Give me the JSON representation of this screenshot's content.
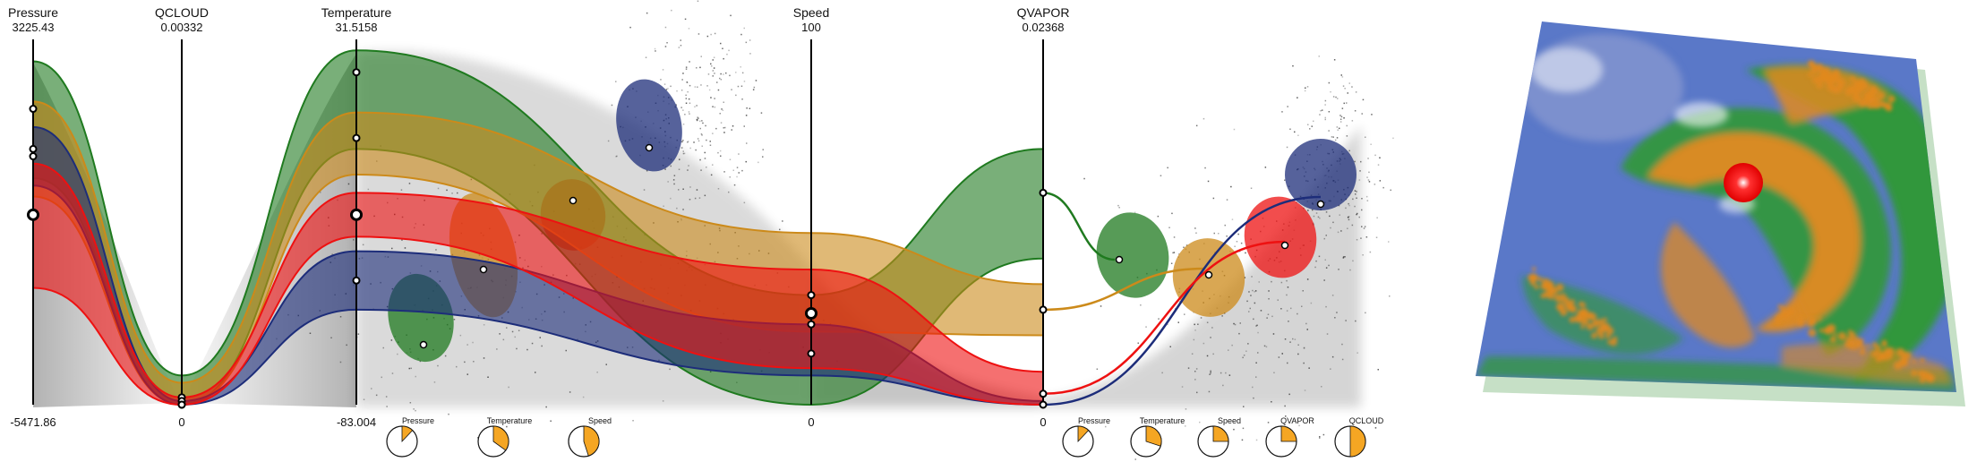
{
  "chart_data": {
    "type": "parallel-coordinates",
    "axes": [
      {
        "name": "Pressure",
        "max_label": "3225.43",
        "min_label": "-5471.86",
        "min": -5471.86,
        "max": 3225.43
      },
      {
        "name": "QCLOUD",
        "max_label": "0.00332",
        "min_label": "0",
        "min": 0,
        "max": 0.00332
      },
      {
        "name": "Temperature",
        "max_label": "31.5158",
        "min_label": "-83.004",
        "min": -83.004,
        "max": 31.5158
      },
      {
        "name": "Speed",
        "max_label": "100",
        "min_label": "0",
        "min": 0,
        "max": 100
      },
      {
        "name": "QVAPOR",
        "max_label": "0.02368",
        "min_label": "0",
        "min": 0,
        "max": 0.02368
      }
    ],
    "clusters": [
      {
        "color": "#1f7a1f",
        "center": [
          0.81,
          0.02,
          0.91,
          0.22,
          0.58
        ],
        "upper": [
          0.94,
          0.08,
          0.97,
          0.3,
          0.7
        ],
        "lower": [
          0.62,
          0.0,
          0.7,
          0.0,
          0.4
        ],
        "blob_upper": [
          0.82,
          0.55,
          0.62
        ],
        "blob_lower": [
          0.45,
          0.2,
          0.4
        ]
      },
      {
        "color": "#cc8a1a",
        "center": [
          0.7,
          0.01,
          0.73,
          0.3,
          0.26
        ],
        "upper": [
          0.83,
          0.06,
          0.8,
          0.47,
          0.33
        ],
        "lower": [
          0.57,
          0.0,
          0.63,
          0.2,
          0.19
        ],
        "blob_upper": [
          0.78,
          0.55,
          0.55
        ],
        "blob_lower": [
          0.15,
          0.25,
          0.25
        ]
      },
      {
        "color": "#ee1111",
        "center": [
          0.52,
          0.0,
          0.52,
          0.25,
          0.03
        ],
        "upper": [
          0.66,
          0.02,
          0.58,
          0.37,
          0.09
        ],
        "lower": [
          0.32,
          0.0,
          0.46,
          0.1,
          0.0
        ],
        "blob_upper": [
          0.65,
          0.62,
          0.55
        ],
        "blob_lower": [
          0.4,
          0.3,
          0.4
        ]
      },
      {
        "color": "#1d2d7a",
        "center": [
          0.68,
          0.0,
          0.34,
          0.14,
          0.0
        ],
        "upper": [
          0.76,
          0.01,
          0.42,
          0.22,
          0.01
        ],
        "lower": [
          0.6,
          0.0,
          0.26,
          0.08,
          0.0
        ],
        "blob_upper": [
          0.95,
          0.6,
          0.6
        ],
        "blob_lower": [
          0.55,
          0.35,
          0.35
        ]
      }
    ],
    "dials": [
      {
        "label": "Pressure",
        "fraction": 0.12
      },
      {
        "label": "Temperature",
        "fraction": 0.35
      },
      {
        "label": "Speed",
        "fraction": 0.45
      },
      {
        "label": "Pressure",
        "fraction": 0.12
      },
      {
        "label": "Temperature",
        "fraction": 0.3
      },
      {
        "label": "Speed",
        "fraction": 0.25
      },
      {
        "label": "QVAPOR",
        "fraction": 0.25
      },
      {
        "label": "QCLOUD",
        "fraction": 0.5
      }
    ]
  },
  "colors": {
    "green": "#1f7a1f",
    "orange": "#cc8a1a",
    "red": "#ee1111",
    "navy": "#1d2d7a",
    "dial_fill": "#f5a623",
    "ocean": "#5a78c8",
    "land": "#2f9a2f"
  }
}
